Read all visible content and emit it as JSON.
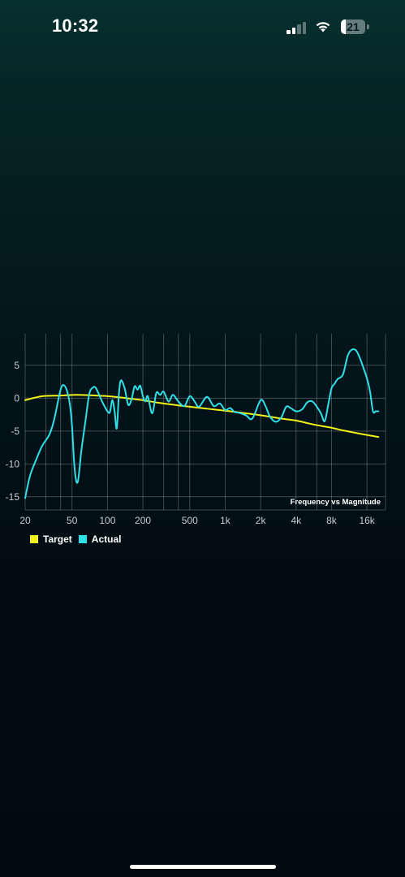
{
  "status_bar": {
    "time": "10:32",
    "battery_level": "21",
    "icons": [
      "cellular-signal-icon",
      "wifi-icon",
      "battery-icon"
    ],
    "signal_bars_active": 2,
    "signal_bars_total": 4
  },
  "chart_data": {
    "type": "line",
    "title": "Frequency vs Magnitude",
    "xlabel": "",
    "ylabel": "",
    "x_scale": "log",
    "xlim": [
      20,
      23000
    ],
    "ylim": [
      -17,
      9.8
    ],
    "x_ticks": [
      20,
      50,
      100,
      200,
      500,
      1000,
      2000,
      4000,
      8000,
      16000
    ],
    "x_tick_labels": [
      "20",
      "50",
      "100",
      "200",
      "500",
      "1k",
      "2k",
      "4k",
      "8k",
      "16k"
    ],
    "x_grid_lines": [
      20,
      30,
      40,
      50,
      100,
      200,
      300,
      400,
      500,
      1000,
      2000,
      4000,
      6000,
      8000,
      16000
    ],
    "y_ticks": [
      5,
      0,
      -5,
      -10,
      -15
    ],
    "y_tick_labels": [
      "5",
      "0",
      "-5",
      "-10",
      "-15"
    ],
    "grid": true,
    "legend_position": "bottom-left",
    "series": [
      {
        "name": "Target",
        "color": "#f2f21a",
        "x": [
          20,
          28,
          40,
          55,
          80,
          100,
          130,
          160,
          200,
          250,
          300,
          400,
          500,
          700,
          1000,
          1500,
          2000,
          3000,
          4000,
          5000,
          6000,
          8000,
          10000,
          13000,
          16000,
          20000
        ],
        "y": [
          -0.3,
          0.3,
          0.4,
          0.5,
          0.4,
          0.3,
          0.1,
          -0.1,
          -0.3,
          -0.6,
          -0.8,
          -1.1,
          -1.3,
          -1.6,
          -1.9,
          -2.3,
          -2.6,
          -3.1,
          -3.4,
          -3.8,
          -4.1,
          -4.5,
          -4.9,
          -5.3,
          -5.6,
          -5.9
        ]
      },
      {
        "name": "Actual",
        "color": "#2ee0e8",
        "x": [
          20,
          22,
          25,
          28,
          32,
          35,
          38,
          40,
          42,
          45,
          48,
          50,
          52,
          54,
          56,
          58,
          60,
          65,
          70,
          75,
          80,
          90,
          100,
          105,
          110,
          115,
          120,
          125,
          130,
          140,
          150,
          160,
          170,
          180,
          190,
          200,
          210,
          220,
          240,
          260,
          280,
          300,
          330,
          360,
          400,
          450,
          500,
          550,
          600,
          700,
          800,
          900,
          1000,
          1100,
          1200,
          1300,
          1500,
          1700,
          2000,
          2200,
          2400,
          2700,
          3000,
          3300,
          3600,
          4000,
          4500,
          5000,
          5500,
          6000,
          6500,
          7000,
          7500,
          8000,
          8500,
          9000,
          10000,
          11000,
          12000,
          13000,
          14000,
          15000,
          16000,
          17000,
          18000,
          19000,
          20000
        ],
        "y": [
          -15.2,
          -11.8,
          -9.2,
          -7.2,
          -5.6,
          -3.5,
          -0.5,
          1.3,
          2.0,
          1.3,
          -1.0,
          -4.2,
          -9.5,
          -12.4,
          -12.7,
          -10.6,
          -8.0,
          -3.5,
          0.6,
          1.6,
          1.5,
          -0.5,
          -2.0,
          -2.1,
          -0.3,
          -2.0,
          -4.6,
          0.5,
          2.7,
          1.5,
          -1.0,
          -0.2,
          1.8,
          1.3,
          1.9,
          0.3,
          -0.5,
          0.3,
          -2.3,
          0.8,
          0.5,
          1.0,
          -0.5,
          0.5,
          -0.5,
          -1.2,
          0.3,
          -0.5,
          -1.3,
          0.2,
          -1.2,
          -0.8,
          -1.8,
          -1.5,
          -2.1,
          -2.2,
          -2.6,
          -3.1,
          -0.3,
          -1.2,
          -2.8,
          -3.6,
          -2.9,
          -1.3,
          -1.5,
          -2.0,
          -1.7,
          -0.6,
          -0.5,
          -1.3,
          -2.3,
          -3.5,
          -1.0,
          1.5,
          2.2,
          2.9,
          3.6,
          6.5,
          7.4,
          7.2,
          6.0,
          4.5,
          3.0,
          1.0,
          -2.0,
          -2.0,
          -2.0
        ]
      }
    ]
  }
}
